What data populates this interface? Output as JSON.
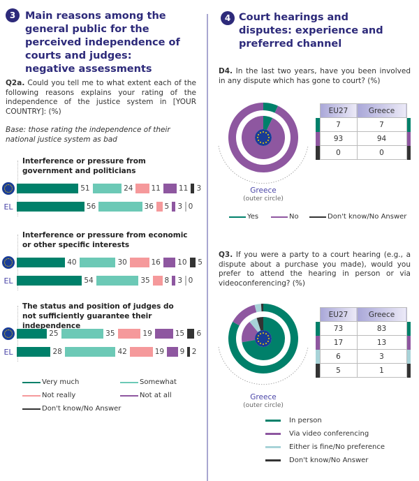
{
  "colors": {
    "very_much": "#00806a",
    "somewhat": "#6cc9b6",
    "not_really": "#f5999b",
    "not_at_all": "#8e57a0",
    "dk": "#333333",
    "either": "#a8d3d8",
    "accent": "#2d2a7a"
  },
  "left": {
    "badge": "3",
    "title": "Main reasons among the general public for the perceived independence of courts and judges: negative assessments",
    "q_code": "Q2a.",
    "question": " Could you tell me to what extent each of the following reasons explains your rating of the independence of the justice system in [YOUR COUNTRY]: (%)",
    "base": "Base: those rating the independence of their national justice system as bad",
    "country_label": "EL"
  },
  "right": {
    "badge": "4",
    "title": "Court hearings and disputes: experience and preferred channel",
    "d4_code": "D4.",
    "d4_question": " In the last two years, have you been involved in any dispute which has gone to court? (%)",
    "q3_code": "Q3.",
    "q3_question": " If you were a party to a court hearing (e.g., a dispute about a purchase you made), would you prefer to attend the hearing in person or via videoconferencing? (%)",
    "greece": "Greece",
    "outer": "(outer circle)"
  },
  "chart_data": [
    {
      "type": "bar",
      "orientation": "horizontal-stacked",
      "legend": [
        "Very much",
        "Somewhat",
        "Not really",
        "Not at all",
        "Don't know/No Answer"
      ],
      "groups": [
        {
          "title": "Interference or pressure from government and politicians",
          "rows": [
            {
              "name": "EU27",
              "values": [
                51,
                24,
                11,
                11,
                3
              ]
            },
            {
              "name": "EL",
              "values": [
                56,
                36,
                5,
                3,
                0
              ]
            }
          ]
        },
        {
          "title": "Interference or pressure from economic or other specific interests",
          "rows": [
            {
              "name": "EU27",
              "values": [
                40,
                30,
                16,
                10,
                5
              ]
            },
            {
              "name": "EL",
              "values": [
                54,
                35,
                8,
                3,
                0
              ]
            }
          ]
        },
        {
          "title": "The status and position of judges do not sufficiently guarantee their independence",
          "rows": [
            {
              "name": "EU27",
              "values": [
                25,
                35,
                19,
                15,
                6
              ]
            },
            {
              "name": "EL",
              "values": [
                28,
                42,
                19,
                9,
                2
              ]
            }
          ]
        }
      ]
    },
    {
      "type": "pie",
      "title": "D4",
      "columns": [
        "EU27",
        "Greece"
      ],
      "legend": [
        "Yes",
        "No",
        "Don't know/No Answer"
      ],
      "eu27": [
        7,
        93,
        0
      ],
      "greece": [
        7,
        94,
        0
      ]
    },
    {
      "type": "pie",
      "title": "Q3",
      "columns": [
        "EU27",
        "Greece"
      ],
      "legend": [
        "In person",
        "Via video conferencing",
        "Either is fine/No preference",
        "Don't know/No Answer"
      ],
      "eu27": [
        73,
        17,
        6,
        5
      ],
      "greece": [
        83,
        13,
        3,
        1
      ]
    }
  ]
}
